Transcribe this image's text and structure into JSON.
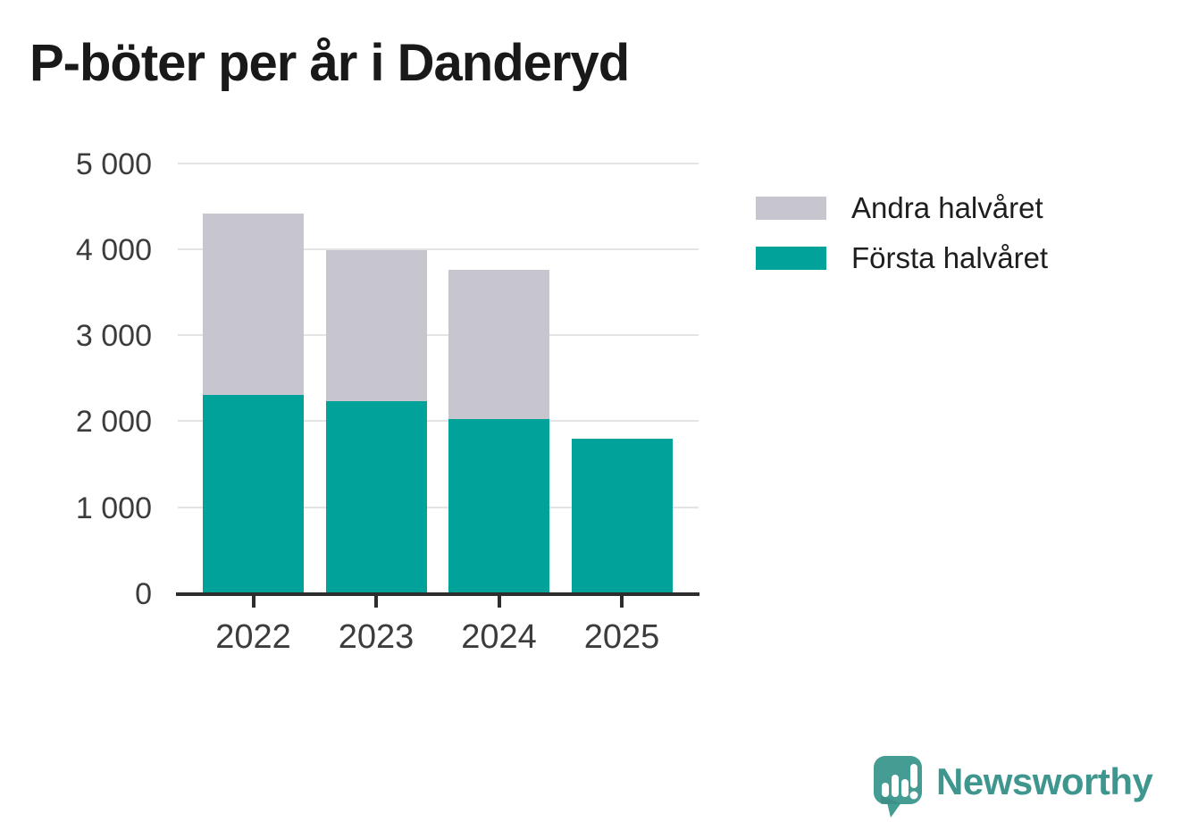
{
  "title": "P-böter per år i Danderyd",
  "colors": {
    "first_half_teal": "#00a29a",
    "second_half_gray": "#c7c6ce",
    "gridline": "#e4e4e4",
    "axis": "#2d2d2d",
    "tick_text": "#3c3c3c",
    "title_text": "#191919",
    "logo_teal": "#459c93",
    "logo_text_teal": "#3e968e"
  },
  "legend": {
    "items": [
      {
        "label": "Andra halvåret",
        "color": "#c7c6ce"
      },
      {
        "label": "Första halvåret",
        "color": "#00a29a"
      }
    ]
  },
  "chart_data": {
    "type": "bar",
    "stacked": true,
    "title": "P-böter per år i Danderyd",
    "categories": [
      "2022",
      "2023",
      "2024",
      "2025"
    ],
    "series": [
      {
        "name": "Första halvåret",
        "color": "#00a29a",
        "values": [
          2320,
          2240,
          2040,
          1810
        ]
      },
      {
        "name": "Andra halvåret",
        "color": "#c7c6ce",
        "values": [
          2100,
          1760,
          1730,
          0
        ]
      }
    ],
    "totals": [
      4420,
      4000,
      3770,
      1810
    ],
    "xlabel": "",
    "ylabel": "",
    "ylim": [
      0,
      5000
    ],
    "yticks": [
      0,
      1000,
      2000,
      3000,
      4000,
      5000
    ],
    "ytick_labels": [
      "0",
      "1 000",
      "2 000",
      "3 000",
      "4 000",
      "5 000"
    ],
    "grid": "horizontal",
    "legend_position": "right"
  },
  "branding": {
    "logo_text": "Newsworthy",
    "logo_icon": "newsworthy-speech-bubble-chart-icon"
  }
}
